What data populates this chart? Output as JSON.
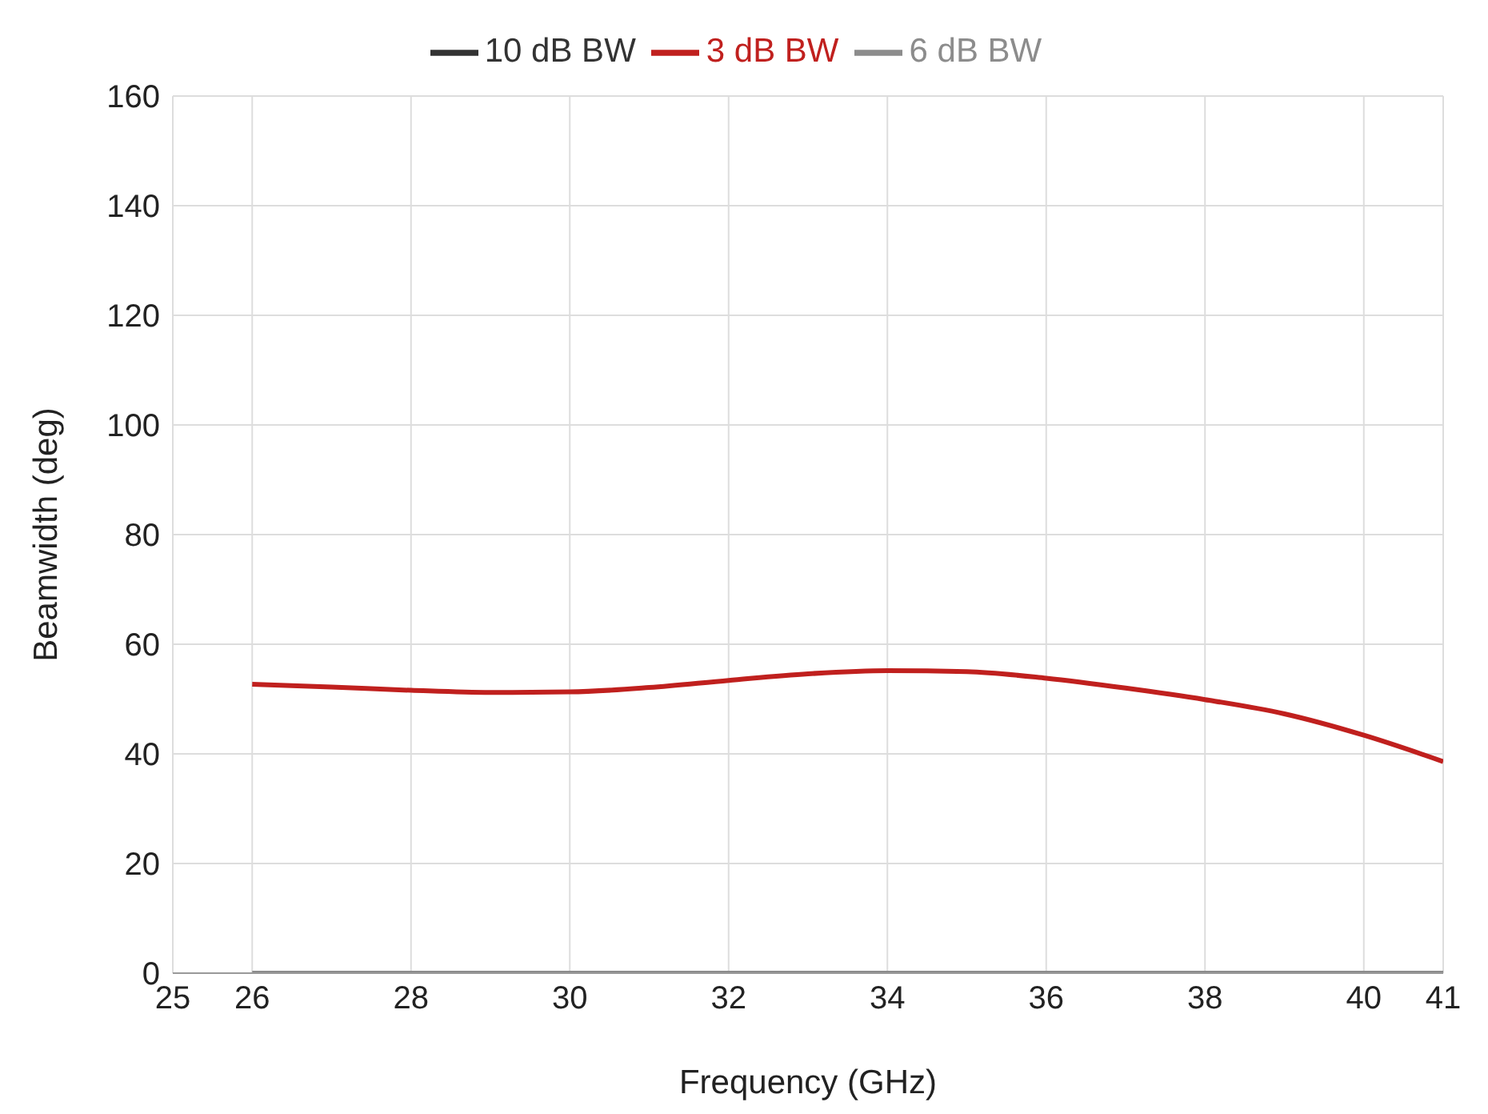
{
  "chart_data": {
    "type": "line",
    "xlabel": "Frequency (GHz)",
    "ylabel": "Beamwidth (deg)",
    "x": [
      26,
      27,
      28,
      29,
      30,
      31,
      32,
      33,
      34,
      35,
      36,
      37,
      38,
      39,
      40,
      41
    ],
    "series": [
      {
        "name": "3 dB BW",
        "color": "#c0201e",
        "values": [
          52.7,
          52.2,
          51.6,
          51.2,
          51.3,
          52.1,
          53.4,
          54.6,
          55.2,
          55.0,
          53.8,
          52.0,
          49.9,
          47.3,
          43.4,
          38.6
        ]
      },
      {
        "name": "6 dB BW",
        "color": "#8c8c8c",
        "values": [
          0,
          0,
          0,
          0,
          0,
          0,
          0,
          0,
          0,
          0,
          0,
          0,
          0,
          0,
          0,
          0
        ]
      },
      {
        "name": "10 dB BW",
        "color": "#333333",
        "values": [
          null,
          null,
          null,
          null,
          null,
          null,
          null,
          null,
          null,
          null,
          null,
          null,
          null,
          null,
          null,
          null
        ]
      }
    ],
    "xlim": [
      25,
      41
    ],
    "xticks": [
      25,
      26,
      28,
      30,
      32,
      34,
      36,
      38,
      40,
      41
    ],
    "ylim": [
      0,
      160
    ],
    "yticks": [
      0,
      20,
      40,
      60,
      80,
      100,
      120,
      140,
      160
    ],
    "grid": true,
    "legend": "top",
    "marker": "none",
    "line_style": "solid"
  }
}
